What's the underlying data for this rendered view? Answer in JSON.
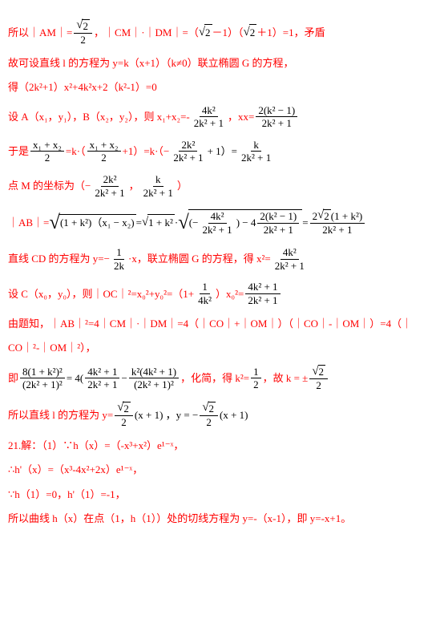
{
  "colors": {
    "red": "#ff0000",
    "black": "#000000",
    "bg": "#ffffff"
  },
  "fonts": {
    "main_size": 13,
    "family": "SimSun"
  },
  "lines": {
    "l1a": "所以｜AM｜=",
    "l1_num": "2",
    "l1_den": "2",
    "l1b": "，｜CM｜·｜DM｜=（",
    "l1_rad1": "2",
    "l1c": "－1）（",
    "l1_rad2": "2",
    "l1d": "＋1）=1，矛盾",
    "l2": "故可设直线 l 的方程为 y=k（x+1）（k≠0）联立椭圆 G 的方程，",
    "l3": "得（2k²+1）x²+4k²x+2（k²-1）=0",
    "l4a": "设 A（x₁，y₁），B（x₂，y₂），则 x₁+x₂=-",
    "l4f1n": "4k²",
    "l4f1d": "2k² + 1",
    "l4b": "，xx=",
    "l4f2n": "2(k² − 1)",
    "l4f2d": "2k² + 1",
    "l5a": "于是",
    "l5f1n": "x₁ + x₂",
    "l5f1d": "2",
    "l5b": "=k·（",
    "l5f2n": "x₁ + x₂",
    "l5f2d": "2",
    "l5c": "+1）=k·（−",
    "l5f3n": "2k²",
    "l5f3d": "2k² + 1",
    "l5d": "+ 1）=",
    "l5f4n": "k",
    "l5f4d": "2k² + 1",
    "l6a": "点 M 的坐标为（−",
    "l6f1n": "2k²",
    "l6f1d": "2k² + 1",
    "l6b": "，",
    "l6f2n": "k",
    "l6f2d": "2k² + 1",
    "l6c": "）",
    "l7a": "｜AB｜=",
    "l7r1": "(1 + k²)（x₁ − x₂)",
    "l7b": " = ",
    "l7r2": "1 + k²",
    "l7c": "·",
    "l7r3a": "(−",
    "l7r3n1": "4k²",
    "l7r3d1": "2k² + 1",
    "l7r3b": ") − 4",
    "l7r3n2": "2(k² − 1)",
    "l7r3d2": "2k² + 1",
    "l7d": "=",
    "l7f1na": "2",
    "l7f1nr": "2",
    "l7f1nb": "(1 + k²)",
    "l7f1d": "2k² + 1",
    "l8a": "直线 CD 的方程为 y=−",
    "l8f1n": "1",
    "l8f1d": "2k",
    "l8b": "·x，联立椭圆 G 的方程，得 x²=",
    "l8f2n": "4k²",
    "l8f2d": "2k² + 1",
    "l9a": "设 C（x₀，y₀），则｜OC｜²=x₀²+y₀²=（1+",
    "l9f1n": "1",
    "l9f1d": "4k²",
    "l9b": "）x₀²=",
    "l9f2n": "4k² + 1",
    "l9f2d": "2k² + 1",
    "l10": "由题知，｜AB｜²=4｜CM｜·｜DM｜=4（｜CO｜+｜OM｜）（｜CO｜-｜OM｜）=4（｜",
    "l10b": "CO｜²-｜OM｜²），",
    "l11a": "即",
    "l11f1n": "8(1 + k²)²",
    "l11f1d": "(2k² + 1)²",
    "l11b": " = 4(",
    "l11f2n": "4k² + 1",
    "l11f2d": "2k² + 1",
    "l11c": " − ",
    "l11f3n": "k²(4k² + 1)",
    "l11f3d": "(2k² + 1)²",
    "l11d": "，化简，得 k²=",
    "l11f4n": "1",
    "l11f4d": "2",
    "l11e": "，故 k = ±",
    "l11f5nr": "2",
    "l11f5d": "2",
    "l12a": "所以直线 l 的方程为 y=",
    "l12f1nr": "2",
    "l12f1d": "2",
    "l12b": "(x + 1) ，y = −",
    "l12f2nr": "2",
    "l12f2d": "2",
    "l12c": "(x + 1)",
    "l13": "21.解：（1）∵h（x）=（-x³+x²）e¹⁻ˣ，",
    "l14": "∴h'（x）=（x³-4x²+2x）e¹⁻ˣ，",
    "l15": "∵h（1）=0，h'（1）=-1，",
    "l16": "所以曲线 h（x）在点（1，h（1））处的切线方程为 y=-（x-1），即 y=-x+1。"
  }
}
